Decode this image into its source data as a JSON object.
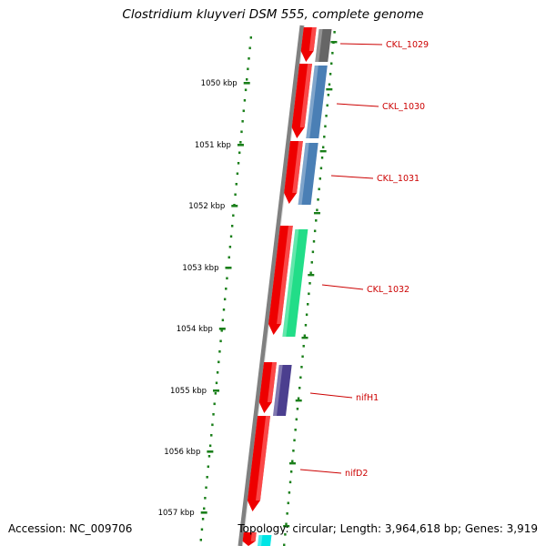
{
  "title": "Clostridium kluyveri DSM 555, complete genome",
  "footer": {
    "accession_label": "Accession:",
    "accession": "NC_009706",
    "topology_text": "Topology: circular; Length: 3,964,618 bp; Genes: 3,919"
  },
  "ticks": [
    {
      "label": "1050 kbp"
    },
    {
      "label": "1051 kbp"
    },
    {
      "label": "1052 kbp"
    },
    {
      "label": "1053 kbp"
    },
    {
      "label": "1054 kbp"
    },
    {
      "label": "1055 kbp"
    },
    {
      "label": "1056 kbp"
    },
    {
      "label": "1057 kbp"
    }
  ],
  "genes": [
    {
      "label": "CKL_1029",
      "color": "#666666"
    },
    {
      "label": "CKL_1030",
      "color": "#4a7fb5"
    },
    {
      "label": "CKL_1031",
      "color": "#4a7fb5"
    },
    {
      "label": "CKL_1032",
      "color": "#22dd88"
    },
    {
      "label": "nifH1",
      "color": "#4b3f8f"
    },
    {
      "label": "nifD2",
      "color": "#00e5e5"
    }
  ],
  "colors": {
    "cds": "#ee0000",
    "backbone": "#808080",
    "ticks": "#1a7f1a",
    "label": "#cc0000"
  }
}
